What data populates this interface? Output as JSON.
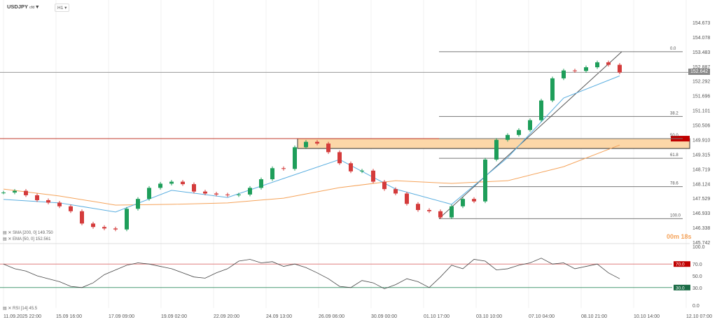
{
  "header": {
    "symbol": "USDJPY",
    "symbol_suffix": "cfd",
    "timeframe": "H1"
  },
  "indicators": {
    "sma": "SMA [200, 0] 149.750",
    "ema": "EMA [50, 0] 152.561",
    "rsi": "RSI [14] 45.5"
  },
  "countdown": "00m 18s",
  "last_price": "152.642",
  "colors": {
    "up": "#1e9e5a",
    "down": "#d43b3b",
    "sma": "#f5a35a",
    "ema": "#5aaee0",
    "zone": "#fcd7a8",
    "resistance": "#c0392b",
    "rsi_upper": "#c00000",
    "rsi_lower": "#1a6b45"
  },
  "chart_data": {
    "type": "candlestick",
    "price_axis": [
      "154.673",
      "154.078",
      "153.483",
      "152.887",
      "152.292",
      "151.696",
      "151.101",
      "150.506",
      "149.910",
      "149.315",
      "148.719",
      "148.124",
      "147.529",
      "146.933",
      "146.338",
      "145.742"
    ],
    "ylim": [
      145.742,
      154.673
    ],
    "time_axis": [
      "11.09.2025  22:00",
      "15.09  16:00",
      "17.09  09:00",
      "19.09  02:00",
      "22.09  20:00",
      "24.09  13:00",
      "26.09  06:00",
      "30.09  00:00",
      "01.10  17:00",
      "03.10  10:00",
      "07.10  04:00",
      "08.10  21:00",
      "10.10  14:00",
      "12.10  07:00"
    ],
    "closes": [
      147.76,
      147.83,
      147.65,
      147.45,
      147.35,
      147.2,
      147.0,
      146.5,
      146.36,
      146.3,
      146.26,
      147.1,
      147.5,
      147.95,
      148.12,
      148.2,
      148.1,
      147.8,
      147.72,
      147.68,
      147.65,
      147.68,
      147.95,
      148.3,
      148.75,
      148.72,
      149.6,
      149.82,
      149.75,
      149.4,
      148.95,
      148.62,
      148.65,
      148.2,
      147.9,
      147.72,
      147.3,
      147.05,
      147.0,
      146.75,
      147.2,
      147.5,
      147.4,
      149.1,
      149.9,
      150.1,
      150.3,
      150.7,
      151.5,
      152.4,
      152.72,
      152.7,
      152.85,
      153.05,
      152.95,
      152.64
    ],
    "ema50": [
      147.48,
      147.34,
      146.97,
      147.85,
      147.56,
      148.33,
      149.1,
      147.9,
      147.28,
      149.18,
      151.6,
      152.5
    ],
    "sma200": [
      147.9,
      147.62,
      147.25,
      147.28,
      147.34,
      147.53,
      147.96,
      148.24,
      148.13,
      148.24,
      148.81,
      149.69
    ],
    "fibonacci": [
      {
        "label": "0.0",
        "price": 153.483
      },
      {
        "label": "38.2",
        "price": 150.85
      },
      {
        "label": "50.0",
        "price": 149.95
      },
      {
        "label": "61.8",
        "price": 149.15
      },
      {
        "label": "78.6",
        "price": 148.0
      },
      {
        "label": "100.0",
        "price": 146.7
      }
    ],
    "zone": {
      "top": 149.95,
      "bottom": 149.55
    },
    "resistance_line": 149.95,
    "rsi": {
      "axis": [
        "100.0",
        "70.0",
        "50.0",
        "30.0",
        "0.0"
      ],
      "upper": "70.0",
      "lower": "30.0",
      "values": [
        70,
        62,
        58,
        50,
        45,
        40,
        32,
        30,
        38,
        52,
        60,
        68,
        72,
        70,
        66,
        62,
        55,
        48,
        46,
        55,
        62,
        75,
        78,
        72,
        74,
        66,
        70,
        64,
        55,
        45,
        32,
        30,
        42,
        38,
        28,
        35,
        45,
        40,
        30,
        48,
        68,
        62,
        78,
        75,
        60,
        62,
        68,
        72,
        80,
        70,
        72,
        62,
        66,
        70,
        55,
        45
      ]
    }
  }
}
